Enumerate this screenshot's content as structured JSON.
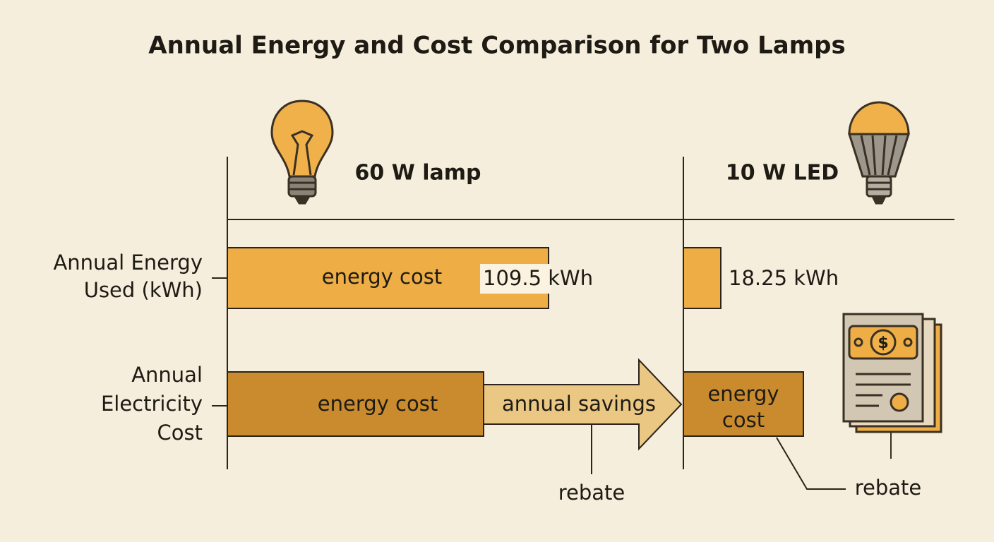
{
  "title": "Annual Energy and Cost Comparison for Two Lamps",
  "columns": [
    "60 W lamp",
    "10 W LED"
  ],
  "rows": [
    {
      "label": [
        "Annual Energy",
        "Used (kWh)"
      ],
      "lamp": {
        "bar_text": "energy cost",
        "value": "109.5 kWh"
      },
      "led": {
        "value": "18.25 kWh"
      }
    },
    {
      "label": [
        "Annual",
        "Electricity",
        "Cost"
      ],
      "lamp": {
        "bar_text": "energy cost",
        "arrow_text": "annual savings",
        "note": "rebate"
      },
      "led": {
        "bar_text": [
          "energy",
          "cost"
        ],
        "note": "rebate"
      }
    }
  ]
}
